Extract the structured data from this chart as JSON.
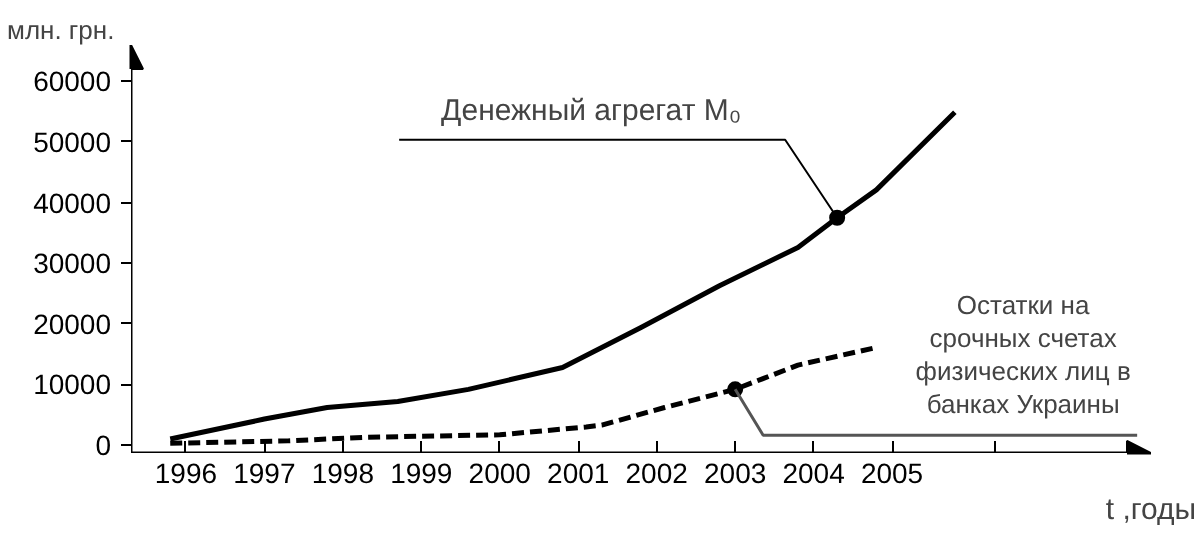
{
  "chart_data": {
    "type": "line",
    "ylabel": "млн. грн.",
    "xlabel": "t ,годы",
    "x": [
      1995.8,
      1997.0,
      1997.8,
      1998.7,
      1999.6,
      2000.8,
      2001.3,
      2001.8,
      2002.8,
      2003.8,
      2004.3,
      2004.8,
      2005.8
    ],
    "series": [
      {
        "color": "#000000",
        "line_style": "solid",
        "values": [
          1000,
          4300,
          6200,
          7200,
          9200,
          12800,
          16100,
          19400,
          26300,
          32600,
          37500,
          42100,
          54900
        ]
      },
      {
        "color": "#000000",
        "line_style": "dashed",
        "x": [
          1995.8,
          1997.3,
          1998.3,
          2000.0,
          2001.1,
          2001.3,
          2002.1,
          2003.0,
          2003.8,
          2004.8
        ],
        "values": [
          300,
          700,
          1300,
          1700,
          3000,
          3300,
          6200,
          9200,
          13200,
          16100
        ]
      }
    ],
    "annotations": [
      {
        "text": "Денежный агрегат M₀",
        "x": 2004.3,
        "y": 37500
      },
      {
        "text": "Остатки на срочных счетах физических лиц в банках Украины",
        "x": 2003.0,
        "y": 9200
      }
    ],
    "xlim": [
      1995.3,
      2008.3
    ],
    "ylim": [
      -1300,
      66000
    ],
    "xticks": [
      1996,
      1997,
      1998,
      1999,
      2000,
      2001,
      2002,
      2003,
      2004,
      2005,
      {
        "value": 2006.3,
        "label": null
      }
    ],
    "yticks": [
      0,
      10000,
      20000,
      30000,
      40000,
      50000,
      60000
    ],
    "grid": false,
    "marker": "none"
  }
}
